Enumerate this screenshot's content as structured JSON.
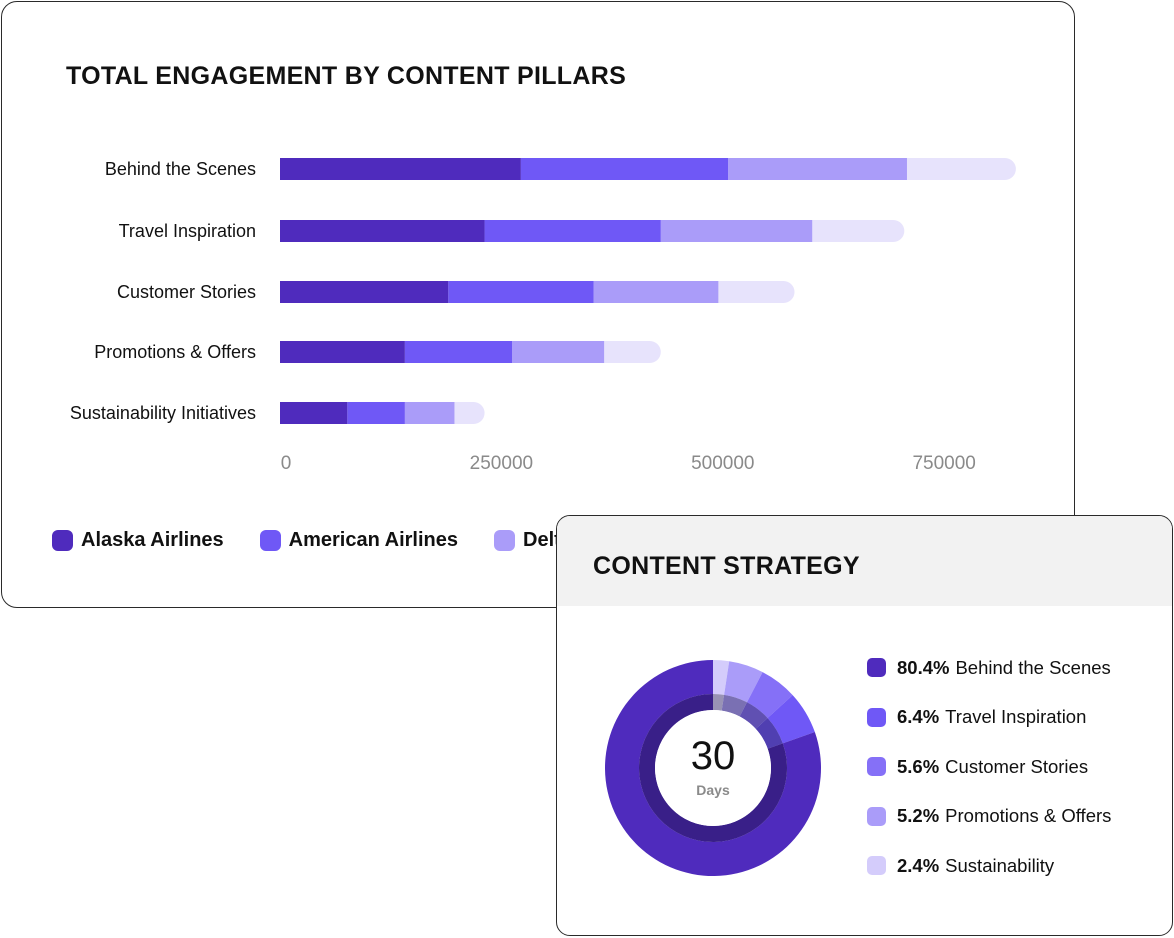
{
  "engagement_card": {
    "title": "TOTAL ENGAGEMENT BY CONTENT PILLARS",
    "legend": [
      {
        "label": "Alaska Airlines",
        "color": "#4f2bbd"
      },
      {
        "label": "American Airlines",
        "color": "#6f58f6"
      },
      {
        "label": "Delt",
        "color": "#aa9cf9"
      }
    ]
  },
  "strategy_card": {
    "title": "CONTENT STRATEGY",
    "center_value": "30",
    "center_unit": "Days",
    "legend": [
      {
        "pct": "80.4%",
        "label": "Behind the Scenes",
        "color": "#4f2bbd"
      },
      {
        "pct": "6.4%",
        "label": "Travel Inspiration",
        "color": "#6f58f6"
      },
      {
        "pct": "5.6%",
        "label": "Customer Stories",
        "color": "#8570f7"
      },
      {
        "pct": "5.2%",
        "label": "Promotions & Offers",
        "color": "#aa9cf9"
      },
      {
        "pct": "2.4%",
        "label": "Sustainability",
        "color": "#d4ccfb"
      }
    ]
  },
  "chart_data": [
    {
      "type": "bar",
      "orientation": "horizontal",
      "stacked": true,
      "title": "TOTAL ENGAGEMENT BY CONTENT PILLARS",
      "categories": [
        "Behind the Scenes",
        "Travel Inspiration",
        "Customer Stories",
        "Promotions & Offers",
        "Sustainability Initiatives"
      ],
      "series": [
        {
          "name": "Alaska Airlines",
          "color": "#4f2bbd",
          "values": [
            272000,
            231000,
            190000,
            141000,
            76000
          ]
        },
        {
          "name": "American Airlines",
          "color": "#6f58f6",
          "values": [
            234000,
            199000,
            164000,
            121000,
            65000
          ]
        },
        {
          "name": "Delt",
          "color": "#aa9cf9",
          "values": [
            202000,
            171000,
            141000,
            104000,
            56000
          ]
        },
        {
          "color": "#e7e3fc",
          "values": [
            123000,
            104000,
            86000,
            64000,
            34000
          ]
        }
      ],
      "xticks": [
        0,
        250000,
        500000,
        750000
      ],
      "xlim": [
        0,
        830000
      ],
      "legend_position": "bottom"
    },
    {
      "type": "pie",
      "donut": true,
      "title": "CONTENT STRATEGY",
      "center_label": "30 Days",
      "labels": [
        "Behind the Scenes",
        "Travel Inspiration",
        "Customer Stories",
        "Promotions & Offers",
        "Sustainability"
      ],
      "values": [
        80.4,
        6.4,
        5.6,
        5.2,
        2.4
      ],
      "colors": [
        "#4f2bbd",
        "#6f58f6",
        "#8570f7",
        "#aa9cf9",
        "#d4ccfb"
      ],
      "legend_position": "right"
    }
  ]
}
